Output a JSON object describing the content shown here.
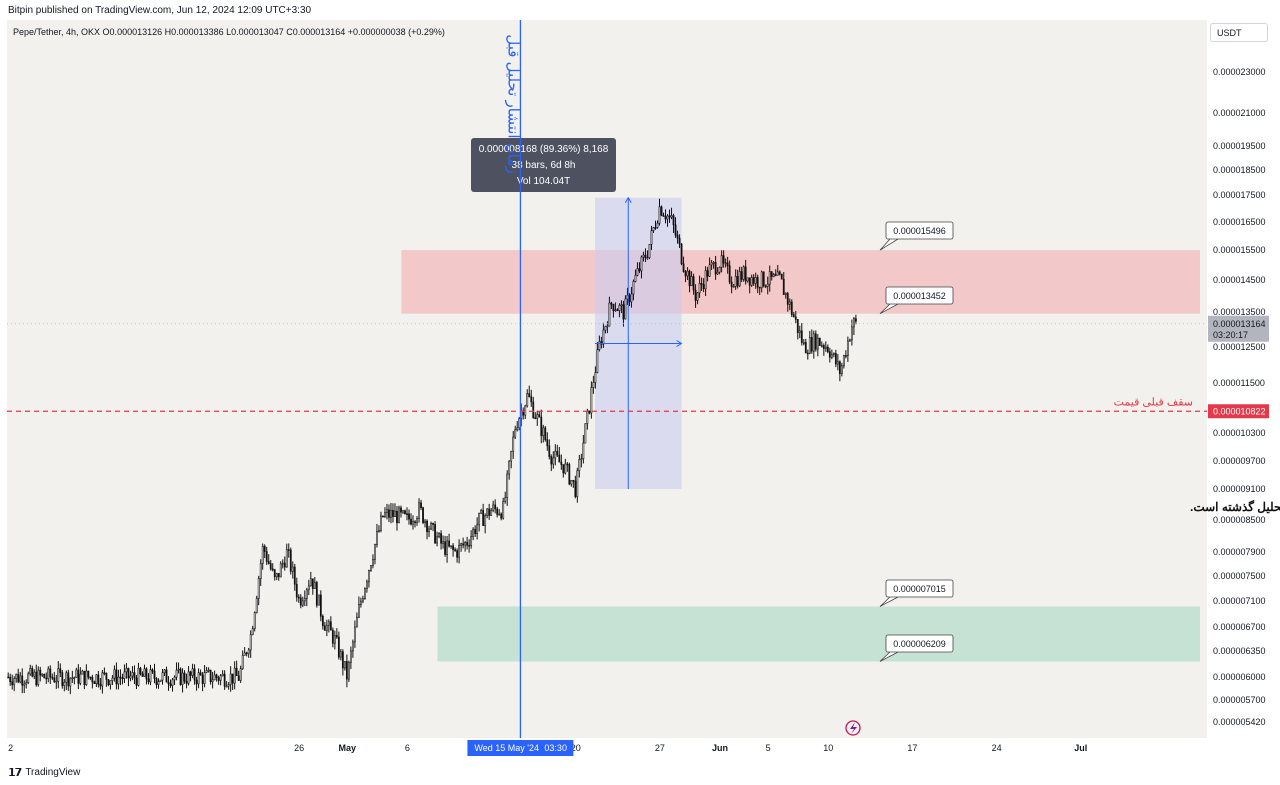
{
  "header": {
    "published_line": "Bitpin published on TradingView.com, Jun 12, 2024 12:09 UTC+3:30",
    "legend": "Pepe/Tether, 4h, OKX  O0.000013126  H0.000013386  L0.000013047  C0.000013164  +0.000000038 (+0.29%)",
    "currency_button": "USDT"
  },
  "footer": {
    "brand": "TradingView"
  },
  "chart_data": {
    "type": "candlestick",
    "symbol": "Pepe/Tether, 4h, OKX",
    "ohlc": {
      "open": "0.000013126",
      "high": "0.000013386",
      "low": "0.000013047",
      "close": "0.000013164",
      "change": "+0.000000038 (+0.29%)"
    },
    "ylim": [
      5.2e-06,
      2.45e-05
    ],
    "y_ticks": [
      {
        "label": "0.000023000",
        "value": 2.3e-05
      },
      {
        "label": "0.000021000",
        "value": 2.1e-05
      },
      {
        "label": "0.000019500",
        "value": 1.95e-05
      },
      {
        "label": "0.000018500",
        "value": 1.85e-05
      },
      {
        "label": "0.000017500",
        "value": 1.75e-05
      },
      {
        "label": "0.000016500",
        "value": 1.65e-05
      },
      {
        "label": "0.000015500",
        "value": 1.55e-05
      },
      {
        "label": "0.000014500",
        "value": 1.45e-05
      },
      {
        "label": "0.000013500",
        "value": 1.35e-05
      },
      {
        "label": "0.000012500",
        "value": 1.25e-05
      },
      {
        "label": "0.000011500",
        "value": 1.15e-05
      },
      {
        "label": "0.000010300",
        "value": 1.03e-05
      },
      {
        "label": "0.000009700",
        "value": 9.7e-06
      },
      {
        "label": "0.000009100",
        "value": 9.1e-06
      },
      {
        "label": "0.000008500",
        "value": 8.5e-06
      },
      {
        "label": "0.000007900",
        "value": 7.9e-06
      },
      {
        "label": "0.000007500",
        "value": 7.5e-06
      },
      {
        "label": "0.000007100",
        "value": 7.1e-06
      },
      {
        "label": "0.000006700",
        "value": 6.7e-06
      },
      {
        "label": "0.000006350",
        "value": 6.35e-06
      },
      {
        "label": "0.000006000",
        "value": 6e-06
      },
      {
        "label": "0.000005700",
        "value": 5.7e-06
      },
      {
        "label": "0.000005420",
        "value": 5.42e-06
      }
    ],
    "x_ticks": [
      {
        "label": "2",
        "day": -28
      },
      {
        "label": "26",
        "day": -4
      },
      {
        "label": "May",
        "day": 0
      },
      {
        "label": "6",
        "day": 5
      },
      {
        "label": "20",
        "day": 19
      },
      {
        "label": "27",
        "day": 26
      },
      {
        "label": "Jun",
        "day": 31
      },
      {
        "label": "5",
        "day": 35
      },
      {
        "label": "10",
        "day": 40
      },
      {
        "label": "17",
        "day": 47
      },
      {
        "label": "24",
        "day": 54
      },
      {
        "label": "Jul",
        "day": 61
      }
    ],
    "x_range_days": [
      -28.3,
      71.5
    ],
    "path_keypoints": [
      [
        "2024-04-22",
        6e-06
      ],
      [
        "2024-04-23",
        6.6e-06
      ],
      [
        "2024-04-24",
        8e-06
      ],
      [
        "2024-04-25",
        7.4e-06
      ],
      [
        "2024-04-26",
        7.9e-06
      ],
      [
        "2024-04-27",
        7.1e-06
      ],
      [
        "2024-04-28",
        7.5e-06
      ],
      [
        "2024-04-29",
        6.8e-06
      ],
      [
        "2024-04-30",
        6.5e-06
      ],
      [
        "2024-05-01",
        6e-06
      ],
      [
        "2024-05-02",
        7e-06
      ],
      [
        "2024-05-03",
        7.8e-06
      ],
      [
        "2024-05-04",
        8.6e-06
      ],
      [
        "2024-05-05",
        8.6e-06
      ],
      [
        "2024-05-06",
        8.5e-06
      ],
      [
        "2024-05-07",
        8.7e-06
      ],
      [
        "2024-05-08",
        8.3e-06
      ],
      [
        "2024-05-09",
        8e-06
      ],
      [
        "2024-05-10",
        7.9e-06
      ],
      [
        "2024-05-11",
        8.1e-06
      ],
      [
        "2024-05-12",
        8.5e-06
      ],
      [
        "2024-05-13",
        8.7e-06
      ],
      [
        "2024-05-14",
        8.7e-06
      ],
      [
        "2024-05-15",
        1.05e-05
      ],
      [
        "2024-05-16",
        1.12e-05
      ],
      [
        "2024-05-17",
        1.05e-05
      ],
      [
        "2024-05-18",
        9.8e-06
      ],
      [
        "2024-05-19",
        9.6e-06
      ],
      [
        "2024-05-20",
        9.1e-06
      ],
      [
        "2024-05-21",
        1.07e-05
      ],
      [
        "2024-05-22",
        1.26e-05
      ],
      [
        "2024-05-23",
        1.38e-05
      ],
      [
        "2024-05-24",
        1.35e-05
      ],
      [
        "2024-05-25",
        1.46e-05
      ],
      [
        "2024-05-26",
        1.55e-05
      ],
      [
        "2024-05-27",
        1.71e-05
      ],
      [
        "2024-05-28",
        1.65e-05
      ],
      [
        "2024-05-29",
        1.5e-05
      ],
      [
        "2024-05-30",
        1.4e-05
      ],
      [
        "2024-05-31",
        1.48e-05
      ],
      [
        "2024-06-01",
        1.51e-05
      ],
      [
        "2024-06-02",
        1.45e-05
      ],
      [
        "2024-06-03",
        1.47e-05
      ],
      [
        "2024-06-04",
        1.45e-05
      ],
      [
        "2024-06-05",
        1.45e-05
      ],
      [
        "2024-06-06",
        1.45e-05
      ],
      [
        "2024-06-07",
        1.35e-05
      ],
      [
        "2024-06-08",
        1.25e-05
      ],
      [
        "2024-06-09",
        1.27e-05
      ],
      [
        "2024-06-10",
        1.25e-05
      ],
      [
        "2024-06-11",
        1.18e-05
      ],
      [
        "2024-06-12",
        1.316e-05
      ]
    ],
    "zones": [
      {
        "name": "resistance",
        "low": 1.3452e-05,
        "high": 1.5496e-05,
        "from_day": 4.5,
        "color": "#f2b9bb"
      },
      {
        "name": "support",
        "low": 6.209e-06,
        "high": 7.015e-06,
        "from_day": 7.5,
        "color": "#b6dccb"
      }
    ],
    "callouts": [
      "0.000015496",
      "0.000013452",
      "0.000007015",
      "0.000006209"
    ],
    "prev_ceiling": {
      "label": "سقف قبلی قیمت",
      "value": 1.0822e-05,
      "price_label": "0.000010822",
      "color": "#e5384a"
    },
    "current_price": {
      "label": "0.000013164",
      "countdown": "03:20:17",
      "value": 1.3164e-05
    },
    "vertical_marker": {
      "day": 14.4,
      "date_label": "Wed 15 May '24",
      "time_label": "03:30",
      "annotation": "زمان انتشار تحلیل قبل",
      "color": "#2962ff"
    },
    "measure": {
      "from_day": 20.6,
      "to_day": 27.8,
      "low": 9.1e-06,
      "high": 1.74e-05,
      "line1": "0.000008168 (89.36%) 8,168",
      "line2": "38 bars, 6d 8h",
      "line3": "Vol 104.04T"
    },
    "note": "* تمامی نواحی و سطوحی که در چارت مشاهده می‌کنید مربوط به تحلیل گذشته است."
  }
}
